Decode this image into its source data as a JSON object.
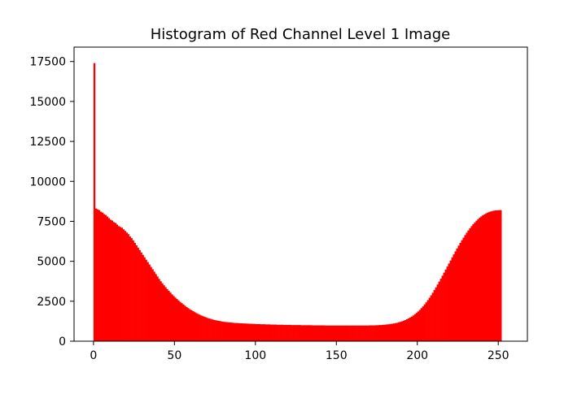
{
  "chart_data": {
    "type": "bar",
    "title": "Histogram of Red Channel Level 1 Image",
    "xlabel": "",
    "ylabel": "",
    "bin_start": 0,
    "bin_width": 1,
    "values": [
      17400,
      8300,
      8250,
      8200,
      8100,
      8050,
      7950,
      7900,
      7800,
      7700,
      7600,
      7550,
      7450,
      7400,
      7300,
      7200,
      7150,
      7100,
      7000,
      6900,
      6800,
      6700,
      6550,
      6450,
      6300,
      6150,
      6000,
      5850,
      5700,
      5550,
      5400,
      5250,
      5100,
      4950,
      4800,
      4650,
      4500,
      4350,
      4200,
      4050,
      3900,
      3750,
      3620,
      3500,
      3380,
      3260,
      3150,
      3040,
      2930,
      2830,
      2730,
      2640,
      2550,
      2460,
      2380,
      2300,
      2220,
      2140,
      2070,
      2000,
      1940,
      1880,
      1820,
      1760,
      1710,
      1660,
      1610,
      1570,
      1530,
      1490,
      1450,
      1420,
      1390,
      1360,
      1330,
      1310,
      1290,
      1270,
      1250,
      1230,
      1210,
      1200,
      1190,
      1180,
      1170,
      1160,
      1150,
      1140,
      1140,
      1130,
      1120,
      1120,
      1110,
      1110,
      1100,
      1100,
      1090,
      1090,
      1080,
      1080,
      1070,
      1070,
      1070,
      1060,
      1060,
      1060,
      1050,
      1050,
      1050,
      1040,
      1040,
      1040,
      1040,
      1030,
      1030,
      1030,
      1030,
      1020,
      1020,
      1020,
      1020,
      1020,
      1010,
      1010,
      1010,
      1010,
      1010,
      1010,
      1000,
      1000,
      1000,
      1000,
      1000,
      1000,
      1000,
      990,
      990,
      990,
      990,
      990,
      990,
      990,
      990,
      980,
      980,
      980,
      980,
      980,
      980,
      980,
      980,
      980,
      980,
      980,
      980,
      980,
      980,
      980,
      980,
      980,
      980,
      980,
      980,
      980,
      980,
      980,
      980,
      980,
      980,
      980,
      990,
      990,
      990,
      990,
      1000,
      1000,
      1010,
      1010,
      1020,
      1030,
      1040,
      1050,
      1060,
      1080,
      1090,
      1110,
      1130,
      1150,
      1180,
      1210,
      1240,
      1280,
      1320,
      1370,
      1420,
      1480,
      1540,
      1610,
      1690,
      1770,
      1860,
      1960,
      2070,
      2180,
      2300,
      2430,
      2570,
      2720,
      2870,
      3030,
      3200,
      3370,
      3550,
      3730,
      3910,
      4100,
      4290,
      4480,
      4670,
      4860,
      5050,
      5240,
      5430,
      5620,
      5800,
      5980,
      6150,
      6320,
      6480,
      6640,
      6790,
      6930,
      7070,
      7200,
      7320,
      7430,
      7540,
      7640,
      7730,
      7810,
      7880,
      7940,
      8000,
      8050,
      8090,
      8120,
      8150,
      8170,
      8180,
      8190,
      8200,
      8200
    ],
    "xlim": [
      -12,
      268
    ],
    "ylim": [
      0,
      18400
    ],
    "x_ticks": [
      0,
      50,
      100,
      150,
      200,
      250
    ],
    "x_tick_labels": [
      "0",
      "50",
      "100",
      "150",
      "200",
      "250"
    ],
    "y_ticks": [
      0,
      2500,
      5000,
      7500,
      10000,
      12500,
      15000,
      17500
    ],
    "y_tick_labels": [
      "0",
      "2500",
      "5000",
      "7500",
      "10000",
      "12500",
      "15000",
      "17500"
    ],
    "grid": false,
    "colors": {
      "bar": "#ff0000",
      "axes": "#000000",
      "background": "#ffffff"
    }
  }
}
